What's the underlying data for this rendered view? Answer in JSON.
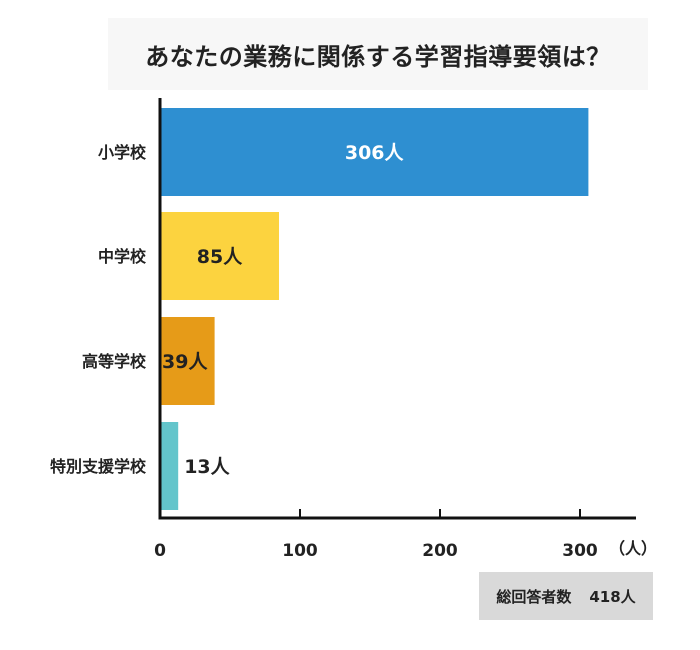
{
  "chart_data": {
    "type": "bar",
    "orientation": "horizontal",
    "title": "あなたの業務に関係する学習指導要領は？",
    "categories": [
      "小学校",
      "中学校",
      "高等学校",
      "特別支援学校"
    ],
    "values": [
      306,
      85,
      39,
      13
    ],
    "value_labels": [
      "306人",
      "85人",
      "39人",
      "13人"
    ],
    "colors": [
      "#2e8fd1",
      "#fcd33f",
      "#e69b18",
      "#63c5cb"
    ],
    "xlim": [
      0,
      330
    ],
    "xticks": [
      0,
      100,
      200,
      300
    ],
    "x_unit": "（人）",
    "grid": false,
    "legend": "none"
  },
  "total": {
    "label": "総回答者数",
    "value": "418人"
  },
  "colors": {
    "axis": "#111111",
    "label_text": "#222222",
    "inside_label_light": "#ffffff",
    "inside_label_dark": "#222222",
    "title_background": "#f7f7f7",
    "total_background": "#d9d9d9"
  }
}
